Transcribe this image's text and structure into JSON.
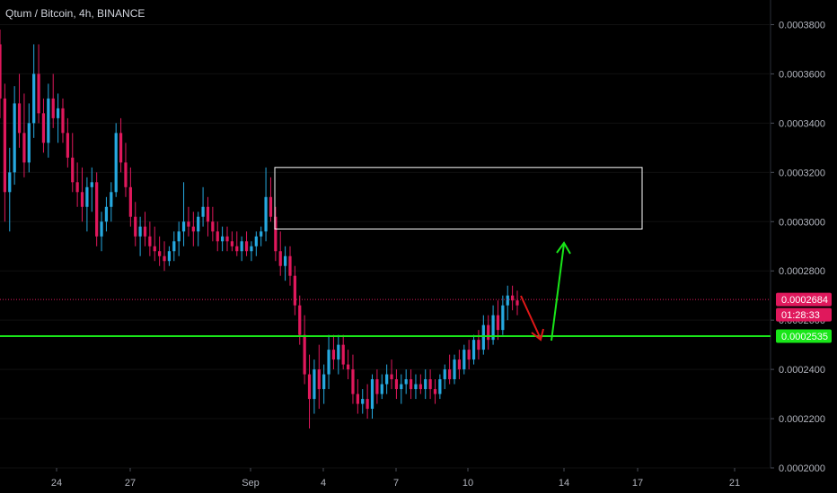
{
  "header": {
    "title": "Qtum / Bitcoin, 4h, BINANCE"
  },
  "colors": {
    "up": "#26a9e0",
    "down": "#e0185c",
    "support": "#19e619",
    "annotation_up": "#19e619",
    "annotation_down": "#e01818",
    "price_line": "#e0185c",
    "grid": "#111111"
  },
  "chart_data": {
    "type": "candlestick",
    "title": "Qtum / Bitcoin, 4h, BINANCE",
    "ylim": [
      0.0002,
      0.00039
    ],
    "y_ticks": [
      "0.0002000",
      "0.0002200",
      "0.0002400",
      "0.0002600",
      "0.0002800",
      "0.0003000",
      "0.0003200",
      "0.0003400",
      "0.0003600",
      "0.0003800"
    ],
    "x_ticks": [
      "24",
      "27",
      "Sep",
      "4",
      "7",
      "10",
      "14",
      "17",
      "21"
    ],
    "badges": {
      "last_price": "0.0002684",
      "countdown": "01:28:33",
      "support": "0.0002535"
    },
    "last_price": 0.0002684,
    "support_level": 0.0002535,
    "resistance_zone": [
      0.000297,
      0.000322
    ],
    "candles": [
      [
        0.000372,
        0.000378,
        0.000342,
        0.00035
      ],
      [
        0.00035,
        0.000356,
        0.0003,
        0.000312
      ],
      [
        0.000312,
        0.00033,
        0.000296,
        0.00032
      ],
      [
        0.00032,
        0.000355,
        0.000315,
        0.000348
      ],
      [
        0.000348,
        0.00036,
        0.00033,
        0.000336
      ],
      [
        0.000336,
        0.000352,
        0.000318,
        0.000324
      ],
      [
        0.000324,
        0.000348,
        0.00032,
        0.00034
      ],
      [
        0.00034,
        0.000372,
        0.000334,
        0.00036
      ],
      [
        0.00036,
        0.000372,
        0.00034,
        0.000344
      ],
      [
        0.000344,
        0.00035,
        0.000328,
        0.000332
      ],
      [
        0.000332,
        0.000356,
        0.000326,
        0.00035
      ],
      [
        0.00035,
        0.00036,
        0.000338,
        0.000342
      ],
      [
        0.000342,
        0.000352,
        0.000332,
        0.000346
      ],
      [
        0.000346,
        0.00035,
        0.000332,
        0.000336
      ],
      [
        0.000336,
        0.000342,
        0.000322,
        0.000326
      ],
      [
        0.000326,
        0.000336,
        0.000312,
        0.000316
      ],
      [
        0.000316,
        0.000324,
        0.000306,
        0.000312
      ],
      [
        0.000312,
        0.000322,
        0.0003,
        0.000306
      ],
      [
        0.000306,
        0.000318,
        0.000296,
        0.000314
      ],
      [
        0.000314,
        0.000322,
        0.000304,
        0.000316
      ],
      [
        0.000316,
        0.00032,
        0.00029,
        0.000294
      ],
      [
        0.000294,
        0.000304,
        0.000288,
        0.0003
      ],
      [
        0.0003,
        0.00031,
        0.000296,
        0.000306
      ],
      [
        0.000306,
        0.000316,
        0.0003,
        0.000312
      ],
      [
        0.000312,
        0.00034,
        0.00031,
        0.000336
      ],
      [
        0.000336,
        0.000342,
        0.00032,
        0.000324
      ],
      [
        0.000324,
        0.000332,
        0.00031,
        0.000314
      ],
      [
        0.000314,
        0.000322,
        0.000298,
        0.000302
      ],
      [
        0.000302,
        0.000308,
        0.00029,
        0.000294
      ],
      [
        0.000294,
        0.000302,
        0.000286,
        0.000298
      ],
      [
        0.000298,
        0.000304,
        0.00029,
        0.000294
      ],
      [
        0.000294,
        0.0003,
        0.000286,
        0.00029
      ],
      [
        0.00029,
        0.000298,
        0.000284,
        0.000288
      ],
      [
        0.000288,
        0.000294,
        0.000282,
        0.000286
      ],
      [
        0.000286,
        0.000292,
        0.00028,
        0.000284
      ],
      [
        0.000284,
        0.00029,
        0.000282,
        0.000288
      ],
      [
        0.000288,
        0.000296,
        0.000284,
        0.000292
      ],
      [
        0.000292,
        0.0003,
        0.000286,
        0.000296
      ],
      [
        0.000296,
        0.000316,
        0.00029,
        0.0003
      ],
      [
        0.0003,
        0.000306,
        0.000294,
        0.000298
      ],
      [
        0.000298,
        0.000304,
        0.00029,
        0.000296
      ],
      [
        0.000296,
        0.000304,
        0.00029,
        0.000302
      ],
      [
        0.000302,
        0.000314,
        0.000298,
        0.000306
      ],
      [
        0.000306,
        0.00031,
        0.000294,
        0.0003
      ],
      [
        0.0003,
        0.000306,
        0.000292,
        0.000296
      ],
      [
        0.000296,
        0.0003,
        0.000288,
        0.000292
      ],
      [
        0.000292,
        0.000298,
        0.000288,
        0.000294
      ],
      [
        0.000294,
        0.000298,
        0.000288,
        0.000292
      ],
      [
        0.000292,
        0.000296,
        0.000288,
        0.00029
      ],
      [
        0.00029,
        0.000296,
        0.000286,
        0.000288
      ],
      [
        0.000288,
        0.000294,
        0.000284,
        0.000292
      ],
      [
        0.000292,
        0.000296,
        0.000286,
        0.000288
      ],
      [
        0.000288,
        0.000292,
        0.000284,
        0.00029
      ],
      [
        0.00029,
        0.000296,
        0.000286,
        0.000294
      ],
      [
        0.000294,
        0.000298,
        0.00029,
        0.000296
      ],
      [
        0.000296,
        0.000322,
        0.000292,
        0.00031
      ],
      [
        0.00031,
        0.000318,
        0.0003,
        0.000302
      ],
      [
        0.000302,
        0.000306,
        0.000284,
        0.000288
      ],
      [
        0.000288,
        0.000296,
        0.000278,
        0.000282
      ],
      [
        0.000282,
        0.00029,
        0.000276,
        0.000286
      ],
      [
        0.000286,
        0.00029,
        0.000274,
        0.000278
      ],
      [
        0.000278,
        0.000282,
        0.000262,
        0.000266
      ],
      [
        0.000266,
        0.00027,
        0.00025,
        0.000254
      ],
      [
        0.000254,
        0.000262,
        0.000234,
        0.000238
      ],
      [
        0.000238,
        0.000246,
        0.000216,
        0.000228
      ],
      [
        0.000228,
        0.000244,
        0.000222,
        0.00024
      ],
      [
        0.00024,
        0.00025,
        0.000224,
        0.000232
      ],
      [
        0.000232,
        0.000242,
        0.000226,
        0.000238
      ],
      [
        0.000238,
        0.000254,
        0.000232,
        0.000248
      ],
      [
        0.000248,
        0.000254,
        0.00024,
        0.000244
      ],
      [
        0.000244,
        0.000254,
        0.000238,
        0.00025
      ],
      [
        0.00025,
        0.000254,
        0.00024,
        0.000242
      ],
      [
        0.000242,
        0.000248,
        0.000236,
        0.00024
      ],
      [
        0.00024,
        0.000246,
        0.000226,
        0.00023
      ],
      [
        0.00023,
        0.000236,
        0.000222,
        0.000226
      ],
      [
        0.000226,
        0.000232,
        0.000222,
        0.000228
      ],
      [
        0.000228,
        0.000234,
        0.00022,
        0.000224
      ],
      [
        0.000224,
        0.000238,
        0.00022,
        0.000236
      ],
      [
        0.000236,
        0.00024,
        0.000226,
        0.00023
      ],
      [
        0.00023,
        0.000238,
        0.000228,
        0.000234
      ],
      [
        0.000234,
        0.000242,
        0.00023,
        0.000238
      ],
      [
        0.000238,
        0.000244,
        0.000232,
        0.000236
      ],
      [
        0.000236,
        0.00024,
        0.000228,
        0.000232
      ],
      [
        0.000232,
        0.000238,
        0.000226,
        0.000234
      ],
      [
        0.000234,
        0.00024,
        0.00023,
        0.000236
      ],
      [
        0.000236,
        0.00024,
        0.000228,
        0.000232
      ],
      [
        0.000232,
        0.000238,
        0.000228,
        0.000234
      ],
      [
        0.000234,
        0.000238,
        0.00023,
        0.000232
      ],
      [
        0.000232,
        0.00024,
        0.000228,
        0.000236
      ],
      [
        0.000236,
        0.00024,
        0.000228,
        0.000232
      ],
      [
        0.000232,
        0.000236,
        0.000226,
        0.00023
      ],
      [
        0.00023,
        0.000238,
        0.000228,
        0.000236
      ],
      [
        0.000236,
        0.000242,
        0.000232,
        0.00024
      ],
      [
        0.00024,
        0.000246,
        0.000234,
        0.000236
      ],
      [
        0.000236,
        0.000246,
        0.000234,
        0.000244
      ],
      [
        0.000244,
        0.000248,
        0.000236,
        0.00024
      ],
      [
        0.00024,
        0.00025,
        0.000238,
        0.000248
      ],
      [
        0.000248,
        0.000252,
        0.00024,
        0.000244
      ],
      [
        0.000244,
        0.000254,
        0.000242,
        0.000252
      ],
      [
        0.000252,
        0.000256,
        0.000244,
        0.000248
      ],
      [
        0.000248,
        0.000262,
        0.000246,
        0.000258
      ],
      [
        0.000258,
        0.000262,
        0.000248,
        0.000252
      ],
      [
        0.000252,
        0.000266,
        0.00025,
        0.000262
      ],
      [
        0.000262,
        0.000268,
        0.000252,
        0.000256
      ],
      [
        0.000256,
        0.00027,
        0.000254,
        0.000266
      ],
      [
        0.000266,
        0.000274,
        0.00026,
        0.00027
      ],
      [
        0.00027,
        0.000274,
        0.000264,
        0.000268
      ],
      [
        0.000268,
        0.000272,
        0.000262,
        0.000266
      ]
    ]
  }
}
